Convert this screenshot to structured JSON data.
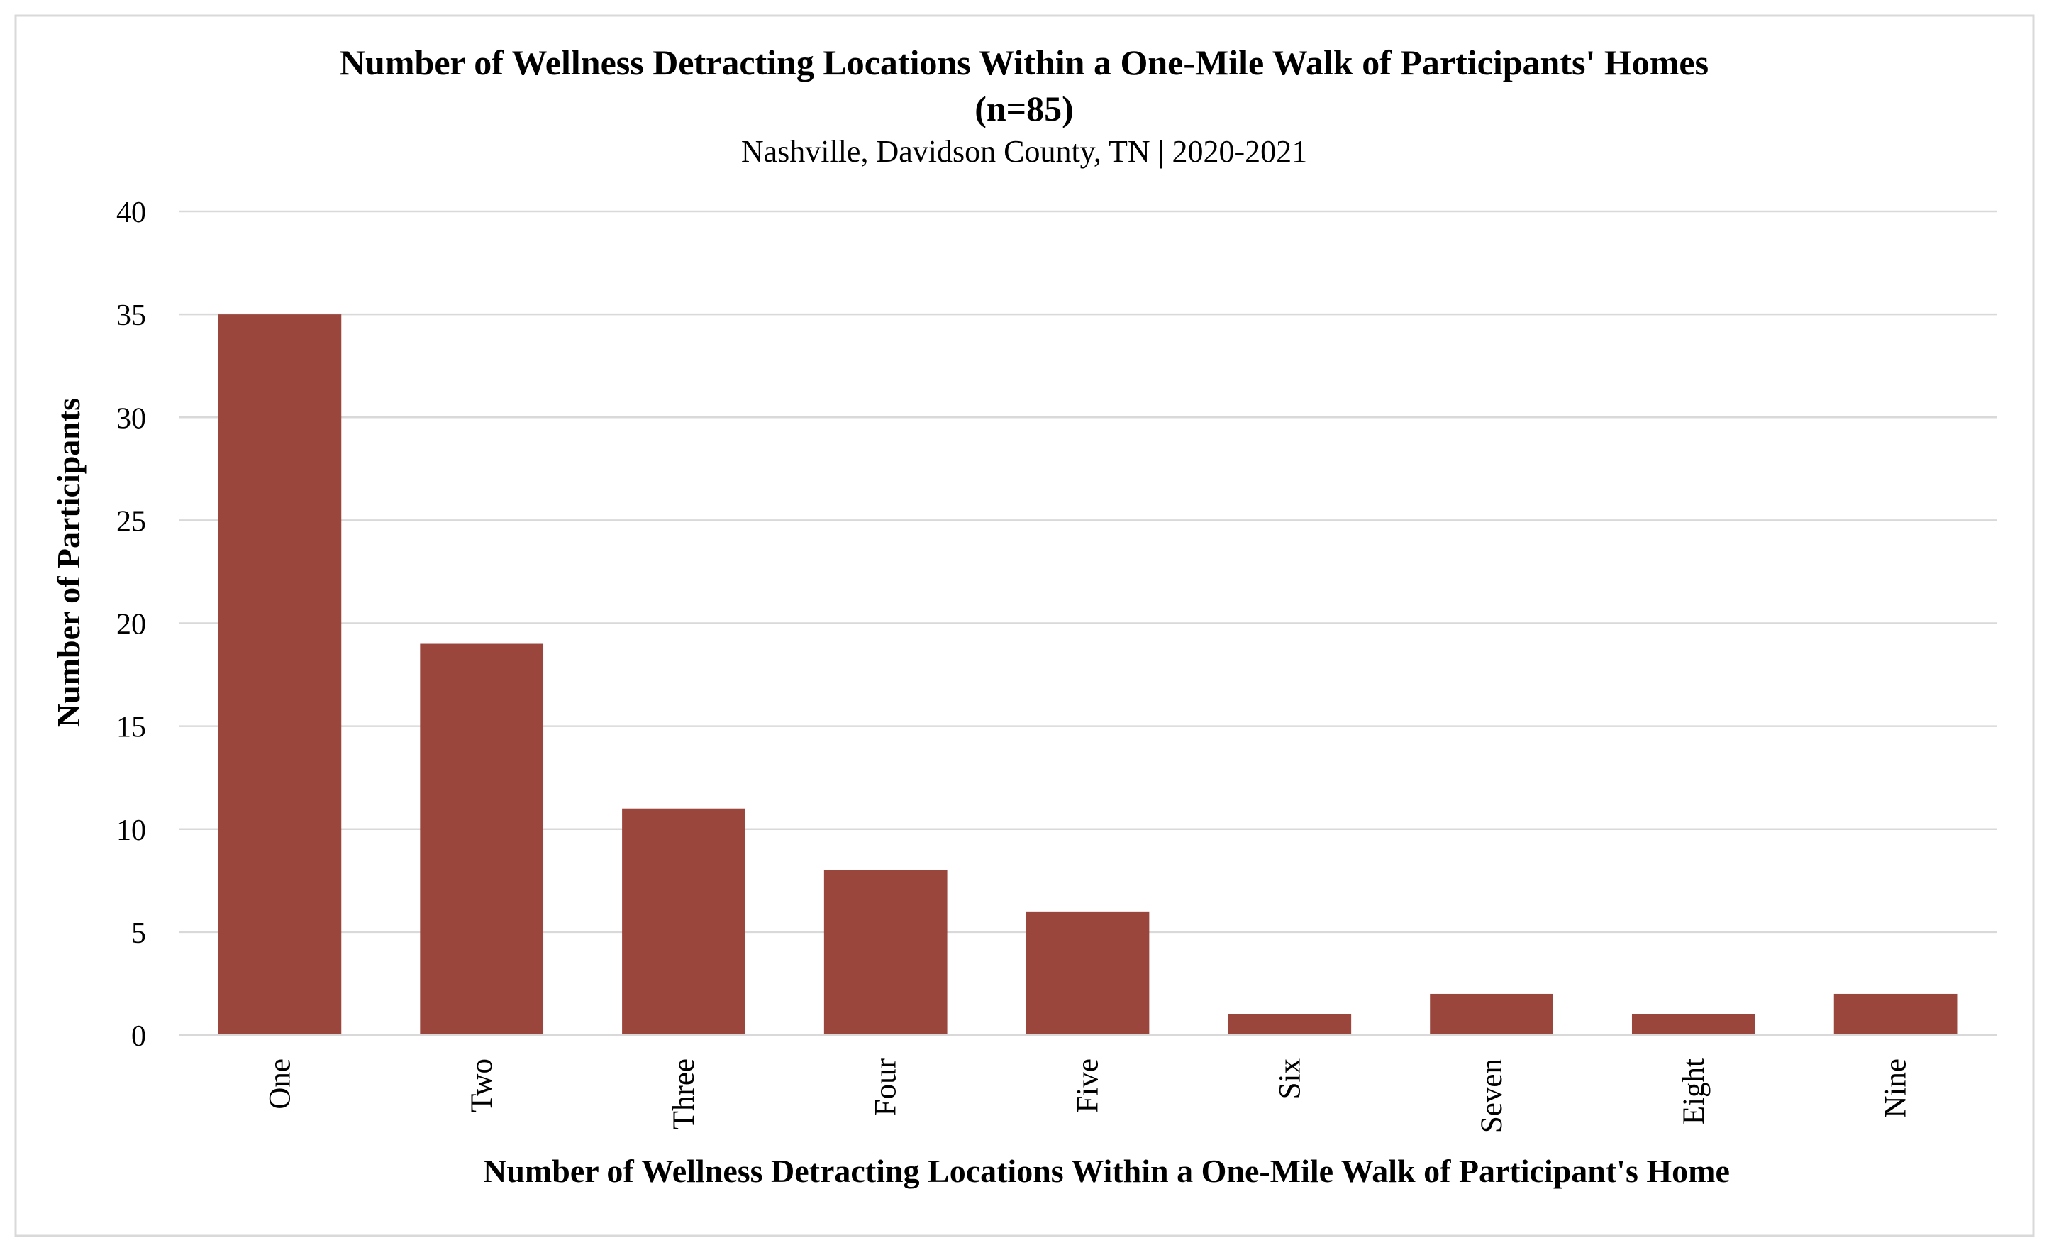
{
  "chart_data": {
    "type": "bar",
    "title": "Number of Wellness Detracting Locations Within a One-Mile Walk of Participants' Homes",
    "title_line2": "(n=85)",
    "subtitle": "Nashville, Davidson County, TN | 2020-2021",
    "xlabel": "Number of Wellness Detracting Locations Within a One-Mile Walk of Participant's Home",
    "ylabel": "Number of Participants",
    "categories": [
      "One",
      "Two",
      "Three",
      "Four",
      "Five",
      "Six",
      "Seven",
      "Eight",
      "Nine"
    ],
    "values": [
      35,
      19,
      11,
      8,
      6,
      1,
      2,
      1,
      2
    ],
    "ylim": [
      0,
      40
    ],
    "yticks": [
      0,
      5,
      10,
      15,
      20,
      25,
      30,
      35,
      40
    ],
    "grid": true,
    "bar_color": "#9B463C",
    "grid_color": "#D9D9D9",
    "border_color": "#D9D9D9"
  }
}
